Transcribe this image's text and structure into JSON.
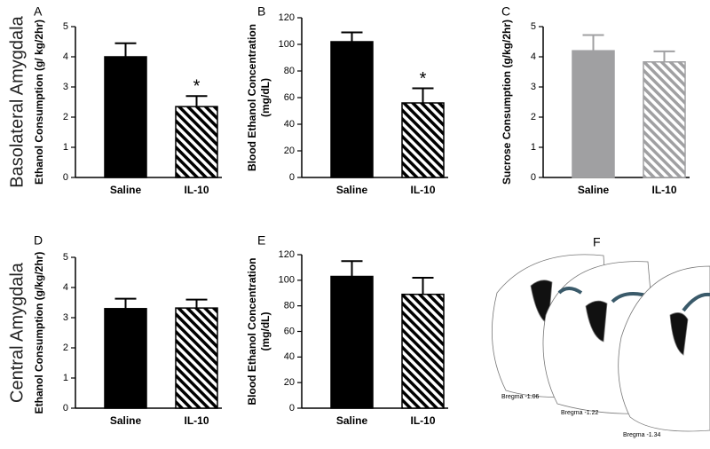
{
  "chart_data": [
    {
      "type": "bar",
      "panel": "A",
      "ylabel": [
        "Ethanol Consumption (g/ kg/2hr)"
      ],
      "categories": [
        "Saline",
        "IL-10"
      ],
      "values": [
        4.0,
        2.35
      ],
      "errors": [
        0.45,
        0.35
      ],
      "colors": [
        "#000000",
        "#000000"
      ],
      "hatch": [
        false,
        true
      ],
      "significance": [
        null,
        "*"
      ],
      "ylim": [
        0,
        5
      ],
      "yticks": [
        0,
        1,
        2,
        3,
        4,
        5
      ]
    },
    {
      "type": "bar",
      "panel": "B",
      "ylabel": [
        "Blood  Ethanol  Concentration",
        "(mg/dL)"
      ],
      "categories": [
        "Saline",
        "IL-10"
      ],
      "values": [
        102,
        56
      ],
      "errors": [
        7,
        11
      ],
      "colors": [
        "#000000",
        "#000000"
      ],
      "hatch": [
        false,
        true
      ],
      "significance": [
        null,
        "*"
      ],
      "ylim": [
        0,
        120
      ],
      "yticks": [
        0,
        20,
        40,
        60,
        80,
        100,
        120
      ]
    },
    {
      "type": "bar",
      "panel": "C",
      "ylabel": [
        "Sucrose  Consumption (g/kg/2hr)"
      ],
      "categories": [
        "Saline",
        "IL-10"
      ],
      "values": [
        4.2,
        3.83
      ],
      "errors": [
        0.52,
        0.35
      ],
      "colors": [
        "#a0a0a2",
        "#a0a0a2"
      ],
      "hatch": [
        false,
        true
      ],
      "significance": [
        null,
        null
      ],
      "ylim": [
        0,
        5
      ],
      "yticks": [
        0,
        1,
        2,
        3,
        4,
        5
      ]
    },
    {
      "type": "bar",
      "panel": "D",
      "ylabel": [
        "Ethanol Consumption (g/kg/2hr)"
      ],
      "categories": [
        "Saline",
        "IL-10"
      ],
      "values": [
        3.3,
        3.32
      ],
      "errors": [
        0.33,
        0.28
      ],
      "colors": [
        "#000000",
        "#000000"
      ],
      "hatch": [
        false,
        true
      ],
      "significance": [
        null,
        null
      ],
      "ylim": [
        0,
        5
      ],
      "yticks": [
        0,
        1,
        2,
        3,
        4,
        5
      ]
    },
    {
      "type": "bar",
      "panel": "E",
      "ylabel": [
        "Blood  Ethanol  Concentration",
        "(mg/dL)"
      ],
      "categories": [
        "Saline",
        "IL-10"
      ],
      "values": [
        103,
        89
      ],
      "errors": [
        12,
        13
      ],
      "colors": [
        "#000000",
        "#000000"
      ],
      "hatch": [
        false,
        true
      ],
      "significance": [
        null,
        null
      ],
      "ylim": [
        0,
        120
      ],
      "yticks": [
        0,
        20,
        40,
        60,
        80,
        100,
        120
      ]
    }
  ],
  "row_labels": [
    "Basolateral Amygdala",
    "Central Amygdala"
  ],
  "panel_f": {
    "panel": "F",
    "labels": [
      "Bregma -1.06",
      "Bregma -1.22",
      "Bregma -1.34"
    ]
  }
}
